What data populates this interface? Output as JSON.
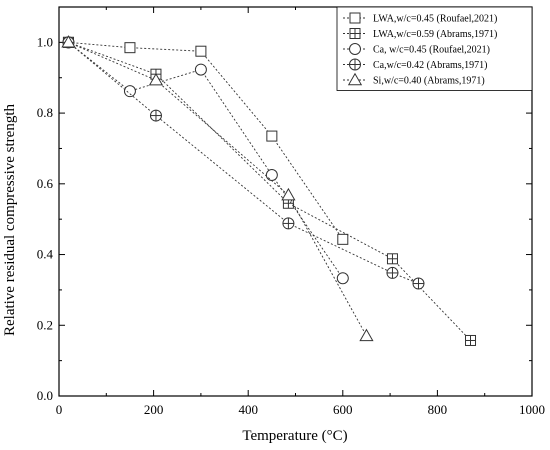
{
  "chart_data": {
    "type": "scatter",
    "xlabel": "Temperature (°C)",
    "ylabel": "Relative residual compressive strength",
    "xlim": [
      0,
      1000
    ],
    "ylim": [
      0,
      1.1
    ],
    "xticks": [
      0,
      200,
      400,
      600,
      800,
      1000
    ],
    "yticks": [
      0.0,
      0.2,
      0.4,
      0.6,
      0.8,
      1.0
    ],
    "tick_labels_x": [
      "0",
      "200",
      "400",
      "600",
      "800",
      "1000"
    ],
    "tick_labels_y": [
      "0.0",
      "0.2",
      "0.4",
      "0.6",
      "0.8",
      "1.0"
    ],
    "legend_placement": "top-right",
    "line_style": "dotted",
    "series": [
      {
        "name": "LWA,w/c=0.45 (Roufael,2021)",
        "marker": "square",
        "points": [
          [
            20,
            1.0
          ],
          [
            150,
            0.985
          ],
          [
            300,
            0.975
          ],
          [
            450,
            0.735
          ],
          [
            600,
            0.443
          ]
        ]
      },
      {
        "name": "LWA,w/c=0.59 (Abrams,1971)",
        "marker": "square-plus",
        "points": [
          [
            20,
            1.0
          ],
          [
            205,
            0.91
          ],
          [
            485,
            0.545
          ],
          [
            705,
            0.388
          ],
          [
            870,
            0.157
          ]
        ]
      },
      {
        "name": "Ca, w/c=0.45 (Roufael,2021)",
        "marker": "circle",
        "points": [
          [
            20,
            1.0
          ],
          [
            150,
            0.862
          ],
          [
            300,
            0.923
          ],
          [
            450,
            0.625
          ],
          [
            600,
            0.333
          ]
        ]
      },
      {
        "name": "Ca,w/c=0.42 (Abrams,1971)",
        "marker": "circle-plus",
        "points": [
          [
            20,
            1.0
          ],
          [
            205,
            0.793
          ],
          [
            485,
            0.488
          ],
          [
            705,
            0.348
          ],
          [
            760,
            0.318
          ]
        ]
      },
      {
        "name": "Si,w/c=0.40 (Abrams,1971)",
        "marker": "triangle",
        "points": [
          [
            20,
            1.0
          ],
          [
            205,
            0.893
          ],
          [
            485,
            0.568
          ],
          [
            650,
            0.17
          ]
        ]
      }
    ]
  }
}
